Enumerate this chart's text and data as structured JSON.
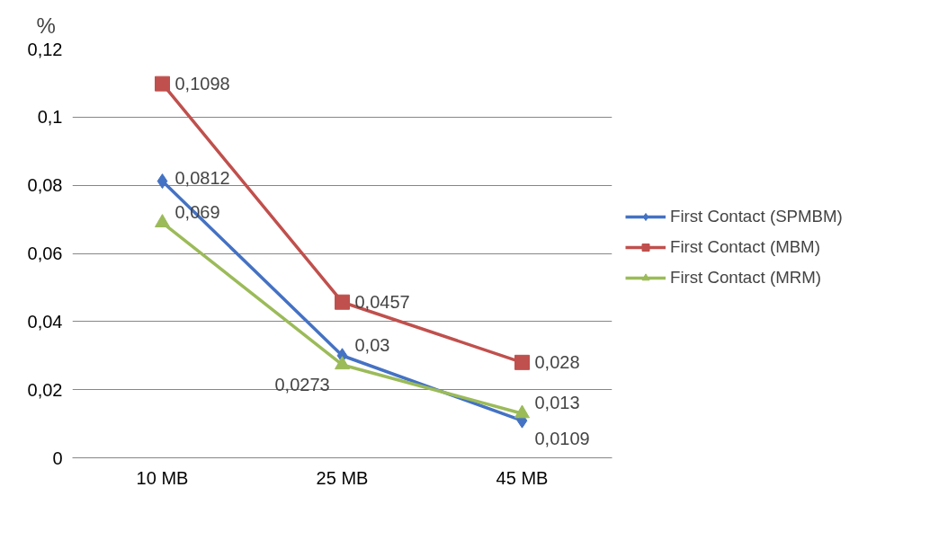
{
  "chart_data": {
    "type": "line",
    "ylabel": "%",
    "categories": [
      "10 MB",
      "25 MB",
      "45 MB"
    ],
    "series": [
      {
        "name": "First Contact (SPMBM)",
        "color": "#4472c4",
        "marker": "diamond",
        "values": [
          0.0812,
          0.03,
          0.0109
        ],
        "value_labels": [
          "0,0812",
          "0,03",
          "0,0109"
        ]
      },
      {
        "name": "First Contact (MBM)",
        "color": "#c0504d",
        "marker": "square",
        "values": [
          0.1098,
          0.0457,
          0.028
        ],
        "value_labels": [
          "0,1098",
          "0,0457",
          "0,028"
        ]
      },
      {
        "name": "First Contact (MRM)",
        "color": "#9bbb59",
        "marker": "triangle",
        "values": [
          0.069,
          0.0273,
          0.013
        ],
        "value_labels": [
          "0,069",
          "0,0273",
          "0,013"
        ]
      }
    ],
    "ylim": [
      0,
      0.12
    ],
    "yticks": [
      {
        "value": 0,
        "label": "0"
      },
      {
        "value": 0.02,
        "label": "0,02"
      },
      {
        "value": 0.04,
        "label": "0,04"
      },
      {
        "value": 0.06,
        "label": "0,06"
      },
      {
        "value": 0.08,
        "label": "0,08"
      },
      {
        "value": 0.1,
        "label": "0,1"
      },
      {
        "value": 0.12,
        "label": "0,12"
      }
    ],
    "grid": "y",
    "legend": "right",
    "line_style": "solid"
  }
}
